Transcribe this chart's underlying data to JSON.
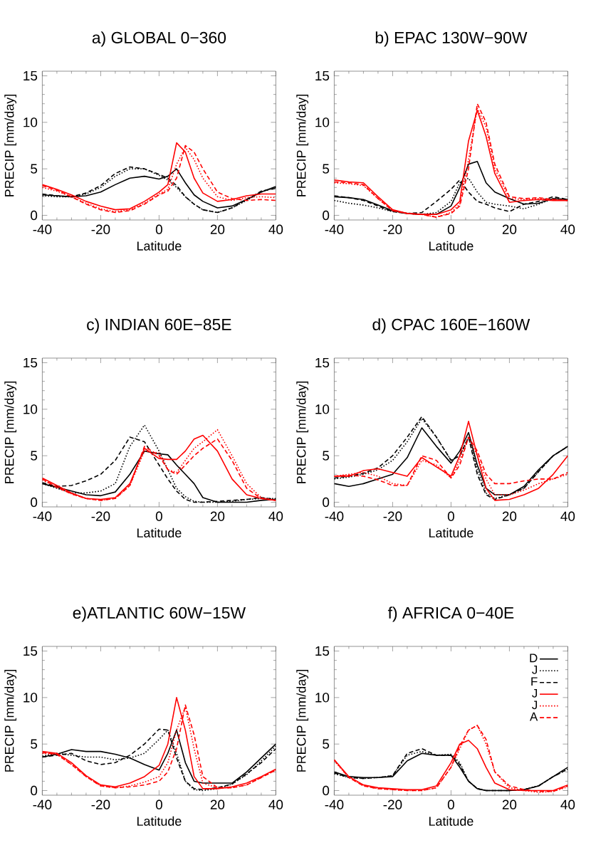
{
  "chart_data": [
    {
      "type": "line",
      "title": "a) GLOBAL 0−360",
      "xlabel": "Latitude",
      "ylabel": "PRECIP [mm/day]",
      "xlim": [
        -40,
        40
      ],
      "ylim": [
        -0.5,
        15.5
      ],
      "xticks": [
        -40,
        -20,
        0,
        20,
        40
      ],
      "yticks": [
        0,
        5,
        10,
        15
      ],
      "x": [
        -40,
        -35,
        -30,
        -25,
        -20,
        -15,
        -10,
        -5,
        0,
        3,
        6,
        9,
        12,
        15,
        20,
        25,
        30,
        35,
        40
      ],
      "series": [
        {
          "color": "#000000",
          "line_style": "solid",
          "values": [
            2.2,
            2.1,
            2.0,
            2.1,
            2.5,
            3.3,
            4.0,
            4.2,
            3.9,
            4.2,
            5.0,
            3.5,
            2.2,
            1.5,
            0.8,
            1.0,
            1.7,
            2.5,
            3.1
          ]
        },
        {
          "color": "#000000",
          "line_style": "dotted",
          "values": [
            2.1,
            2.0,
            2.0,
            2.3,
            3.0,
            4.2,
            5.0,
            5.0,
            4.3,
            3.8,
            3.0,
            2.0,
            1.2,
            0.6,
            0.3,
            0.8,
            1.6,
            2.5,
            3.0
          ]
        },
        {
          "color": "#000000",
          "line_style": "dashed",
          "values": [
            2.3,
            2.1,
            2.0,
            2.4,
            3.2,
            4.5,
            5.2,
            5.0,
            4.4,
            4.0,
            3.2,
            2.0,
            1.2,
            0.6,
            0.3,
            0.8,
            1.7,
            2.6,
            2.9
          ]
        },
        {
          "color": "#ff0000",
          "line_style": "solid",
          "values": [
            3.3,
            2.8,
            2.2,
            1.5,
            1.0,
            0.6,
            0.7,
            1.5,
            2.5,
            3.3,
            7.8,
            6.8,
            4.0,
            2.4,
            1.5,
            1.7,
            2.1,
            2.3,
            2.3
          ]
        },
        {
          "color": "#ff0000",
          "line_style": "dotted",
          "values": [
            3.0,
            2.6,
            2.0,
            1.3,
            0.7,
            0.4,
            0.6,
            1.3,
            2.3,
            2.8,
            5.5,
            7.3,
            6.0,
            4.0,
            2.0,
            1.6,
            1.9,
            2.0,
            1.9
          ]
        },
        {
          "color": "#ff0000",
          "line_style": "dashed",
          "values": [
            3.2,
            2.7,
            2.0,
            1.2,
            0.6,
            0.3,
            0.5,
            1.2,
            2.2,
            2.6,
            4.0,
            7.5,
            6.8,
            5.0,
            2.5,
            1.8,
            1.6,
            1.7,
            1.6
          ]
        }
      ]
    },
    {
      "type": "line",
      "title": "b) EPAC 130W−90W",
      "xlabel": "Latitude",
      "ylabel": "PRECIP [mm/day]",
      "xlim": [
        -40,
        40
      ],
      "ylim": [
        -0.5,
        15.5
      ],
      "xticks": [
        -40,
        -20,
        0,
        20,
        40
      ],
      "yticks": [
        0,
        5,
        10,
        15
      ],
      "x": [
        -40,
        -35,
        -30,
        -25,
        -20,
        -15,
        -10,
        -5,
        0,
        3,
        6,
        9,
        12,
        15,
        20,
        25,
        30,
        35,
        40
      ],
      "series": [
        {
          "color": "#000000",
          "line_style": "solid",
          "values": [
            2.0,
            1.9,
            1.7,
            1.1,
            0.5,
            0.2,
            0.1,
            0.1,
            1.0,
            3.0,
            5.5,
            5.8,
            3.5,
            2.5,
            1.8,
            1.2,
            1.3,
            1.8,
            1.7
          ]
        },
        {
          "color": "#000000",
          "line_style": "dotted",
          "values": [
            1.6,
            1.3,
            1.1,
            0.8,
            0.4,
            0.2,
            0.1,
            0.3,
            1.5,
            3.5,
            4.0,
            2.5,
            1.4,
            1.2,
            1.0,
            0.7,
            1.2,
            1.8,
            1.7
          ]
        },
        {
          "color": "#000000",
          "line_style": "dashed",
          "values": [
            2.1,
            1.9,
            1.6,
            1.0,
            0.4,
            0.2,
            0.3,
            1.5,
            2.8,
            3.8,
            2.5,
            1.5,
            1.2,
            0.8,
            0.4,
            1.2,
            1.5,
            2.0,
            1.7
          ]
        },
        {
          "color": "#ff0000",
          "line_style": "solid",
          "values": [
            3.8,
            3.6,
            3.5,
            2.0,
            0.6,
            0.2,
            0.1,
            0.1,
            0.6,
            1.5,
            8.0,
            11.3,
            8.5,
            4.5,
            1.4,
            1.6,
            1.7,
            1.6,
            1.6
          ]
        },
        {
          "color": "#ff0000",
          "line_style": "dotted",
          "values": [
            3.5,
            3.4,
            3.2,
            1.8,
            0.5,
            0.2,
            0.1,
            -0.2,
            0.3,
            1.2,
            6.0,
            11.5,
            9.5,
            5.0,
            1.8,
            1.7,
            1.8,
            1.7,
            1.6
          ]
        },
        {
          "color": "#ff0000",
          "line_style": "dashed",
          "values": [
            3.6,
            3.5,
            3.3,
            1.8,
            0.5,
            0.2,
            0.1,
            -0.2,
            0.2,
            1.0,
            5.0,
            12.0,
            10.0,
            5.5,
            2.0,
            1.8,
            1.9,
            1.7,
            1.6
          ]
        }
      ]
    },
    {
      "type": "line",
      "title": "c) INDIAN 60E−85E",
      "xlabel": "Latitude",
      "ylabel": "PRECIP [mm/day]",
      "xlim": [
        -40,
        40
      ],
      "ylim": [
        -0.5,
        15.5
      ],
      "xticks": [
        -40,
        -20,
        0,
        20,
        40
      ],
      "yticks": [
        0,
        5,
        10,
        15
      ],
      "x": [
        -40,
        -35,
        -30,
        -25,
        -20,
        -15,
        -10,
        -5,
        0,
        3,
        6,
        9,
        12,
        15,
        20,
        25,
        30,
        35,
        40
      ],
      "series": [
        {
          "color": "#000000",
          "line_style": "solid",
          "values": [
            2.0,
            1.6,
            1.2,
            0.8,
            0.7,
            1.1,
            3.0,
            5.5,
            5.2,
            5.1,
            4.0,
            3.0,
            2.0,
            0.5,
            0.0,
            0.0,
            0.0,
            0.2,
            0.3
          ]
        },
        {
          "color": "#000000",
          "line_style": "dotted",
          "values": [
            2.0,
            1.5,
            1.0,
            1.0,
            1.2,
            2.0,
            6.0,
            8.3,
            5.5,
            3.5,
            1.5,
            0.6,
            0.1,
            0.0,
            0.0,
            0.1,
            0.3,
            0.4,
            0.4
          ]
        },
        {
          "color": "#000000",
          "line_style": "dashed",
          "values": [
            2.1,
            1.7,
            1.8,
            2.3,
            3.0,
            4.5,
            7.0,
            6.5,
            4.0,
            2.5,
            1.2,
            0.3,
            0.0,
            0.0,
            0.1,
            0.2,
            0.3,
            0.5,
            0.3
          ]
        },
        {
          "color": "#ff0000",
          "line_style": "solid",
          "values": [
            2.6,
            1.8,
            1.0,
            0.4,
            0.3,
            0.5,
            2.0,
            5.8,
            4.7,
            4.6,
            4.6,
            5.5,
            6.8,
            7.2,
            5.5,
            2.5,
            0.8,
            0.4,
            0.2
          ]
        },
        {
          "color": "#ff0000",
          "line_style": "dotted",
          "values": [
            2.4,
            1.6,
            0.9,
            0.4,
            0.2,
            0.4,
            1.8,
            5.5,
            5.3,
            3.5,
            3.2,
            4.5,
            5.8,
            6.5,
            7.8,
            5.0,
            2.0,
            0.5,
            0.2
          ]
        },
        {
          "color": "#ff0000",
          "line_style": "dashed",
          "values": [
            2.5,
            1.6,
            0.9,
            0.4,
            0.2,
            0.4,
            1.8,
            6.0,
            5.0,
            3.5,
            3.0,
            4.0,
            5.0,
            5.8,
            6.8,
            4.5,
            1.5,
            0.4,
            0.2
          ]
        }
      ]
    },
    {
      "type": "line",
      "title": "d) CPAC 160E−160W",
      "xlabel": "Latitude",
      "ylabel": "PRECIP [mm/day]",
      "xlim": [
        -40,
        40
      ],
      "ylim": [
        -0.5,
        15.5
      ],
      "xticks": [
        -40,
        -20,
        0,
        20,
        40
      ],
      "yticks": [
        0,
        5,
        10,
        15
      ],
      "x": [
        -40,
        -35,
        -30,
        -25,
        -20,
        -15,
        -10,
        -5,
        0,
        3,
        6,
        9,
        12,
        15,
        20,
        25,
        30,
        35,
        40
      ],
      "series": [
        {
          "color": "#000000",
          "line_style": "solid",
          "values": [
            2.0,
            1.7,
            2.0,
            2.5,
            3.0,
            4.8,
            8.0,
            6.0,
            4.2,
            5.5,
            7.5,
            4.0,
            1.5,
            0.8,
            0.8,
            1.7,
            3.5,
            5.0,
            6.0
          ]
        },
        {
          "color": "#000000",
          "line_style": "dotted",
          "values": [
            2.5,
            2.7,
            3.0,
            3.5,
            4.5,
            6.5,
            9.0,
            7.0,
            4.5,
            5.0,
            7.0,
            3.5,
            1.0,
            0.4,
            0.8,
            1.5,
            3.3,
            5.0,
            6.0
          ]
        },
        {
          "color": "#000000",
          "line_style": "dashed",
          "values": [
            2.6,
            2.8,
            3.1,
            3.7,
            5.0,
            7.0,
            9.2,
            7.0,
            4.5,
            5.0,
            7.0,
            3.0,
            0.8,
            0.3,
            0.8,
            1.5,
            3.3,
            5.0,
            6.0
          ]
        },
        {
          "color": "#ff0000",
          "line_style": "solid",
          "values": [
            2.8,
            2.8,
            3.4,
            3.6,
            3.2,
            2.8,
            4.8,
            3.8,
            2.8,
            5.0,
            8.7,
            5.0,
            1.5,
            0.2,
            0.3,
            0.8,
            1.5,
            3.0,
            5.0
          ]
        },
        {
          "color": "#ff0000",
          "line_style": "dotted",
          "values": [
            2.8,
            3.0,
            3.2,
            2.8,
            2.0,
            1.8,
            4.5,
            4.0,
            2.6,
            4.5,
            7.0,
            5.0,
            2.5,
            0.8,
            0.8,
            1.3,
            2.0,
            2.5,
            3.0
          ]
        },
        {
          "color": "#ff0000",
          "line_style": "dashed",
          "values": [
            2.8,
            2.9,
            2.8,
            2.4,
            1.8,
            1.8,
            5.0,
            4.5,
            2.6,
            4.0,
            7.0,
            5.5,
            3.0,
            2.0,
            2.0,
            2.3,
            2.5,
            2.5,
            3.2
          ]
        }
      ]
    },
    {
      "type": "line",
      "title": "e)ATLANTIC 60W−15W",
      "xlabel": "Latitude",
      "ylabel": "PRECIP [mm/day]",
      "xlim": [
        -40,
        40
      ],
      "ylim": [
        -0.5,
        15.5
      ],
      "xticks": [
        -40,
        -20,
        0,
        20,
        40
      ],
      "yticks": [
        0,
        5,
        10,
        15
      ],
      "x": [
        -40,
        -35,
        -30,
        -25,
        -20,
        -15,
        -10,
        -5,
        0,
        3,
        6,
        9,
        12,
        15,
        20,
        25,
        30,
        35,
        40
      ],
      "series": [
        {
          "color": "#000000",
          "line_style": "solid",
          "values": [
            3.6,
            3.9,
            4.4,
            4.2,
            4.2,
            3.9,
            3.5,
            2.8,
            2.2,
            4.0,
            6.5,
            3.0,
            1.0,
            0.8,
            0.8,
            0.8,
            2.0,
            3.5,
            5.0
          ]
        },
        {
          "color": "#000000",
          "line_style": "dotted",
          "values": [
            3.7,
            4.0,
            3.8,
            3.6,
            3.6,
            3.3,
            3.5,
            4.0,
            5.5,
            6.5,
            4.0,
            1.0,
            0.1,
            0.0,
            0.2,
            0.7,
            1.7,
            3.2,
            4.8
          ]
        },
        {
          "color": "#000000",
          "line_style": "dashed",
          "values": [
            3.6,
            3.8,
            4.0,
            3.2,
            2.8,
            3.0,
            3.8,
            5.0,
            6.6,
            6.5,
            3.5,
            1.0,
            0.2,
            0.1,
            0.3,
            0.7,
            1.8,
            3.0,
            4.5
          ]
        },
        {
          "color": "#ff0000",
          "line_style": "solid",
          "values": [
            4.2,
            4.0,
            3.0,
            1.6,
            0.6,
            0.4,
            0.8,
            1.5,
            2.7,
            5.0,
            10.0,
            6.5,
            1.5,
            0.2,
            0.2,
            0.4,
            0.8,
            1.5,
            2.3
          ]
        },
        {
          "color": "#ff0000",
          "line_style": "dotted",
          "values": [
            4.0,
            3.9,
            2.8,
            1.5,
            0.5,
            0.3,
            0.5,
            0.9,
            1.5,
            3.0,
            6.5,
            9.0,
            4.5,
            0.8,
            0.3,
            0.3,
            0.6,
            1.4,
            2.2
          ]
        },
        {
          "color": "#ff0000",
          "line_style": "dashed",
          "values": [
            4.1,
            3.9,
            2.8,
            1.5,
            0.5,
            0.3,
            0.4,
            0.6,
            1.0,
            2.0,
            4.5,
            9.2,
            6.0,
            1.5,
            0.3,
            0.3,
            0.6,
            1.4,
            2.2
          ]
        }
      ]
    },
    {
      "type": "line",
      "title": "f) AFRICA 0−40E",
      "xlabel": "Latitude",
      "ylabel": "PRECIP [mm/day]",
      "xlim": [
        -40,
        40
      ],
      "ylim": [
        -0.5,
        15.5
      ],
      "xticks": [
        -40,
        -20,
        0,
        20,
        40
      ],
      "yticks": [
        0,
        5,
        10,
        15
      ],
      "legend": "top right",
      "x": [
        -40,
        -35,
        -30,
        -25,
        -20,
        -15,
        -10,
        -5,
        0,
        3,
        6,
        9,
        12,
        15,
        20,
        25,
        30,
        35,
        40
      ],
      "series": [
        {
          "name": "D",
          "color": "#000000",
          "line_style": "solid",
          "values": [
            2.0,
            1.5,
            1.4,
            1.4,
            1.5,
            3.2,
            4.0,
            3.8,
            3.8,
            2.5,
            1.0,
            0.2,
            0.0,
            0.0,
            0.0,
            0.1,
            0.5,
            1.5,
            2.5
          ]
        },
        {
          "name": "J",
          "color": "#000000",
          "line_style": "dotted",
          "values": [
            1.8,
            1.4,
            1.3,
            1.4,
            1.6,
            3.8,
            4.2,
            3.8,
            3.9,
            3.0,
            1.0,
            0.2,
            0.0,
            0.0,
            0.0,
            0.1,
            0.5,
            1.5,
            2.3
          ]
        },
        {
          "name": "F",
          "color": "#000000",
          "line_style": "dashed",
          "values": [
            1.9,
            1.4,
            1.3,
            1.4,
            1.6,
            4.0,
            4.5,
            3.8,
            3.8,
            2.8,
            1.0,
            0.2,
            0.0,
            0.0,
            0.0,
            0.1,
            0.5,
            1.5,
            2.3
          ]
        },
        {
          "name": "J",
          "color": "#ff0000",
          "line_style": "solid",
          "values": [
            3.3,
            1.5,
            0.6,
            0.3,
            0.2,
            0.1,
            0.1,
            0.5,
            3.0,
            5.0,
            5.4,
            4.5,
            2.5,
            0.8,
            0.1,
            0.0,
            0.0,
            0.0,
            0.6
          ]
        },
        {
          "name": "J",
          "color": "#ff0000",
          "line_style": "dotted",
          "values": [
            3.2,
            1.4,
            0.5,
            0.2,
            0.1,
            0.0,
            0.0,
            0.3,
            2.5,
            4.5,
            6.5,
            7.0,
            5.0,
            2.0,
            0.3,
            0.0,
            -0.2,
            -0.1,
            0.4
          ]
        },
        {
          "name": "A",
          "color": "#ff0000",
          "line_style": "dashed",
          "values": [
            3.3,
            1.4,
            0.5,
            0.2,
            0.1,
            0.0,
            0.0,
            0.3,
            2.5,
            4.8,
            6.5,
            7.0,
            5.5,
            2.0,
            0.5,
            0.1,
            -0.1,
            -0.1,
            0.5
          ]
        }
      ]
    }
  ]
}
